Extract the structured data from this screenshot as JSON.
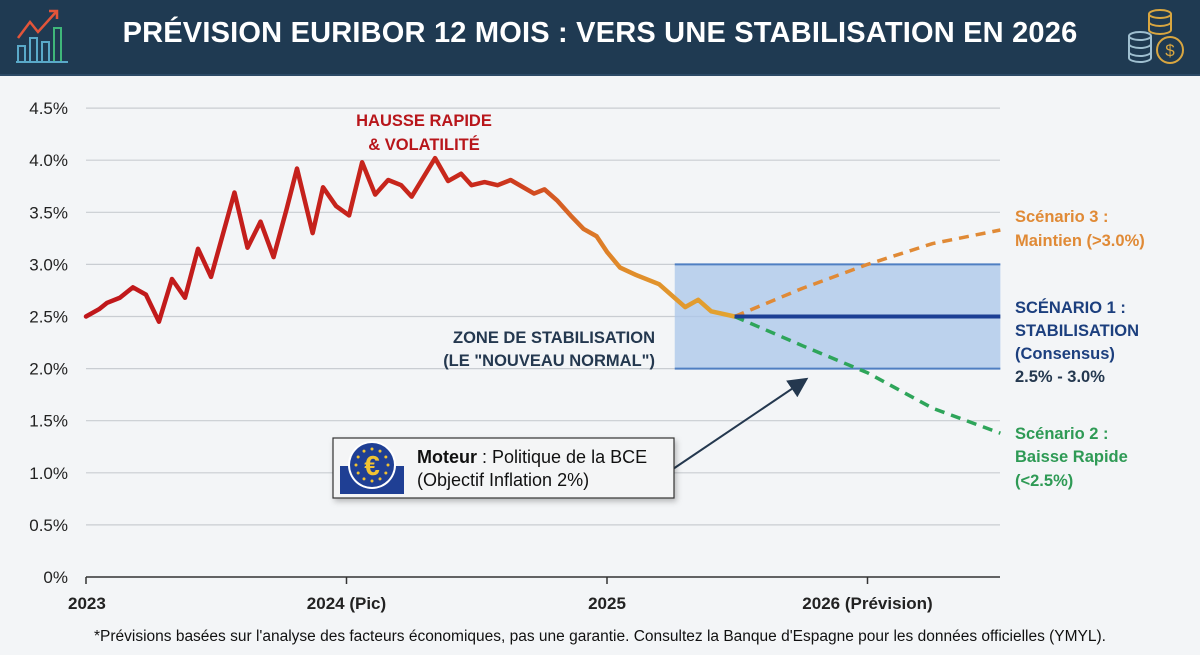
{
  "header": {
    "title": "PRÉVISION EURIBOR 12 MOIS : VERS UNE STABILISATION EN 2026",
    "left_icon": "rising-bar-chart-icon",
    "right_icon": "coin-stacks-dollar-icon"
  },
  "chart_data": {
    "type": "line",
    "title": "PRÉVISION EURIBOR 12 MOIS : VERS UNE STABILISATION EN 2026",
    "xlabel": "",
    "ylabel": "",
    "xlim": [
      2023,
      2026.51
    ],
    "ylim": [
      0,
      4.5
    ],
    "grid": true,
    "x_ticks": [
      {
        "value": 2023,
        "label": "2023"
      },
      {
        "value": 2024,
        "label": "2024 (Pic)"
      },
      {
        "value": 2025,
        "label": "2025"
      },
      {
        "value": 2026,
        "label": "2026 (Prévision)"
      }
    ],
    "y_ticks": [
      {
        "value": 0,
        "label": "0%"
      },
      {
        "value": 0.5,
        "label": "0.5%"
      },
      {
        "value": 1,
        "label": "1.0%"
      },
      {
        "value": 1.5,
        "label": "1.5%"
      },
      {
        "value": 2,
        "label": "2.0%"
      },
      {
        "value": 2.5,
        "label": "2.5%"
      },
      {
        "value": 3,
        "label": "3.0%"
      },
      {
        "value": 3.5,
        "label": "3.5%"
      },
      {
        "value": 4,
        "label": "4.0%"
      },
      {
        "value": 4.5,
        "label": "4.5%"
      }
    ],
    "history": {
      "colors": [
        "#c0171b",
        "#c92a1c",
        "#e08a2a",
        "#e3a531"
      ],
      "x": [
        2023.0,
        2023.05,
        2023.08,
        2023.13,
        2023.18,
        2023.23,
        2023.28,
        2023.33,
        2023.38,
        2023.43,
        2023.48,
        2023.57,
        2023.62,
        2023.67,
        2023.72,
        2023.77,
        2023.81,
        2023.87,
        2023.91,
        2023.96,
        2024.01,
        2024.06,
        2024.11,
        2024.16,
        2024.21,
        2024.25,
        2024.34,
        2024.39,
        2024.44,
        2024.48,
        2024.53,
        2024.58,
        2024.63,
        2024.72,
        2024.76,
        2024.81,
        2024.86,
        2024.91,
        2024.96,
        2025.0,
        2025.05,
        2025.11,
        2025.2,
        2025.25,
        2025.3,
        2025.35,
        2025.4,
        2025.49
      ],
      "y": [
        2.5,
        2.57,
        2.63,
        2.68,
        2.78,
        2.71,
        2.45,
        2.86,
        2.68,
        3.15,
        2.88,
        3.69,
        3.16,
        3.41,
        3.07,
        3.53,
        3.92,
        3.3,
        3.74,
        3.56,
        3.47,
        3.98,
        3.67,
        3.81,
        3.76,
        3.65,
        4.02,
        3.8,
        3.87,
        3.76,
        3.79,
        3.76,
        3.81,
        3.68,
        3.72,
        3.61,
        3.47,
        3.34,
        3.27,
        3.12,
        2.97,
        2.9,
        2.81,
        2.7,
        2.59,
        2.66,
        2.55,
        2.5
      ]
    },
    "series": [
      {
        "name": "Scénario 1 : STABILISATION (Consensus) 2.5% - 3.0%",
        "color": "#1c3f94",
        "style": "solid",
        "x": [
          2025.49,
          2026.51
        ],
        "y": [
          2.5,
          2.5
        ]
      },
      {
        "name": "Scénario 2 : Baisse Rapide (<2.5%)",
        "color": "#2ea55a",
        "style": "dashed",
        "x": [
          2025.49,
          2025.75,
          2026.0,
          2026.25,
          2026.51
        ],
        "y": [
          2.5,
          2.22,
          1.96,
          1.62,
          1.38
        ]
      },
      {
        "name": "Scénario 3 : Maintien (>3.0%)",
        "color": "#e08a36",
        "style": "dashed",
        "x": [
          2025.49,
          2025.75,
          2026.0,
          2026.25,
          2026.51
        ],
        "y": [
          2.5,
          2.77,
          3.0,
          3.2,
          3.33
        ]
      }
    ],
    "zone": {
      "x": [
        2025.26,
        2026.51
      ],
      "y": [
        2.0,
        3.0
      ],
      "color": "#a9c6ea",
      "border": "#4f7fc2"
    },
    "annotations": {
      "peak": {
        "lines": [
          "HAUSSE RAPIDE",
          "& VOLATILITÉ"
        ],
        "color": "#b8161b"
      },
      "zone_label": {
        "lines": [
          "ZONE DE STABILISATION",
          "(LE \"NOUVEAU NORMAL\")"
        ],
        "color": "#24384f"
      },
      "driver": {
        "bold": "Moteur",
        "text": " : Politique de la BCE",
        "line2": "(Objectif Inflation 2%)",
        "icon": "euro-ecb-stars-icon"
      },
      "scenario3": {
        "lines": [
          "Scénario 3 :",
          "Maintien (>3.0%)"
        ],
        "color": "#e08a36"
      },
      "scenario1": {
        "lines": [
          "SCÉNARIO 1 :",
          "STABILISATION",
          "(Consensus)",
          "2.5% - 3.0%"
        ],
        "color": "#1c3f7e",
        "range_color": "#24384f"
      },
      "scenario2": {
        "lines": [
          "Scénario 2 :",
          "Baisse Rapide",
          "(<2.5%)"
        ],
        "color": "#2e9a55"
      }
    }
  },
  "footer": {
    "note": "*Prévisions basées sur l'analyse des facteurs économiques, pas une garantie. Consultez la Banque d'Espagne pour les données officielles (YMYL)."
  }
}
